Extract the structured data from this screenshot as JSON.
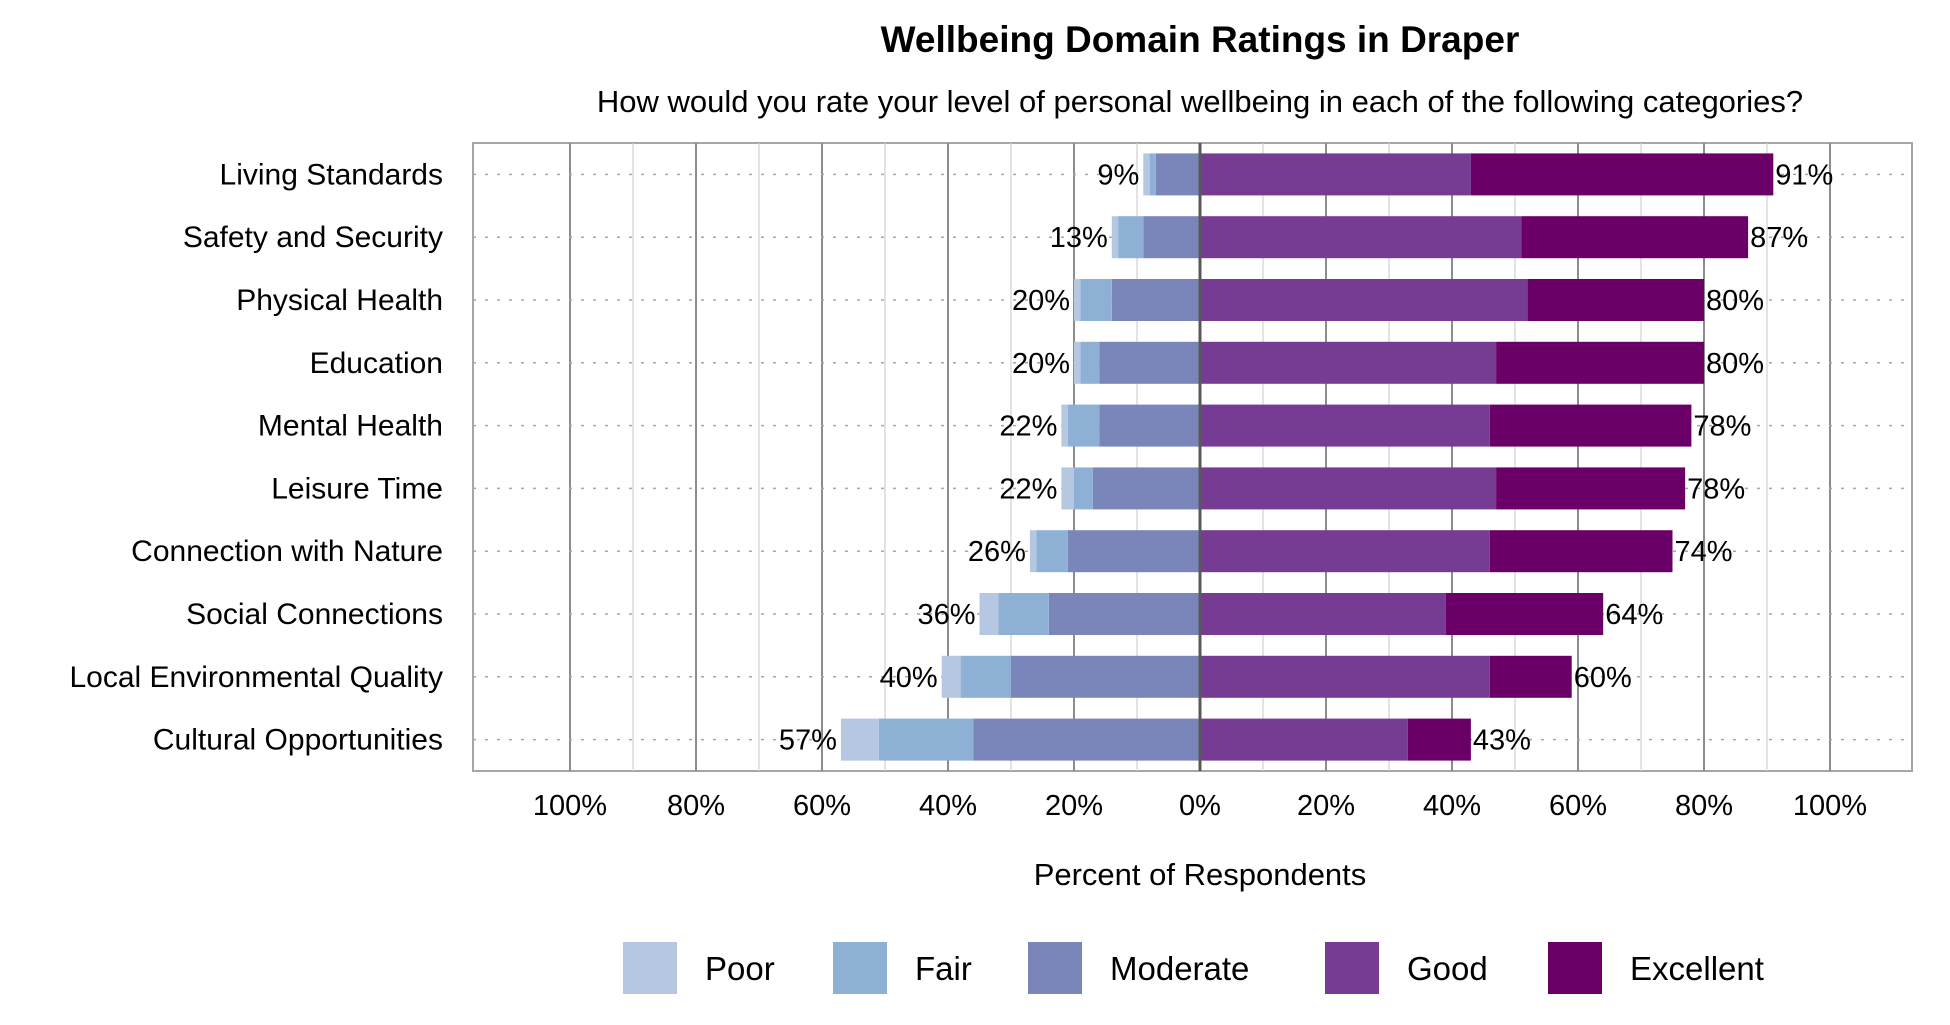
{
  "chart_data": {
    "type": "bar",
    "orientation": "horizontal",
    "stacking": "diverging",
    "title": "Wellbeing Domain Ratings in Draper",
    "subtitle": "How would you rate your level of personal wellbeing in each of the following categories?",
    "xlabel": "Percent of Respondents",
    "ylabel": "",
    "xlim": [
      -100,
      100
    ],
    "x_ticks": [
      "100%",
      "80%",
      "60%",
      "40%",
      "20%",
      "0%",
      "20%",
      "40%",
      "60%",
      "80%",
      "100%"
    ],
    "grid": true,
    "legend_position": "bottom",
    "categories": [
      "Living Standards",
      "Safety and Security",
      "Physical Health",
      "Education",
      "Mental Health",
      "Leisure Time",
      "Connection with Nature",
      "Social Connections",
      "Local Environmental Quality",
      "Cultural Opportunities"
    ],
    "series": [
      {
        "name": "Poor",
        "side": "negative",
        "color": "#b6c8e1",
        "values": [
          1,
          1,
          1,
          1,
          1,
          2,
          1,
          3,
          3,
          6
        ]
      },
      {
        "name": "Fair",
        "side": "negative",
        "color": "#8eb0d5",
        "values": [
          1,
          4,
          5,
          3,
          5,
          3,
          5,
          8,
          8,
          15
        ]
      },
      {
        "name": "Moderate",
        "side": "negative",
        "color": "#7a85ba",
        "values": [
          7,
          9,
          14,
          16,
          16,
          17,
          21,
          24,
          30,
          36
        ]
      },
      {
        "name": "Good",
        "side": "positive",
        "color": "#763c94",
        "values": [
          43,
          51,
          52,
          47,
          46,
          47,
          46,
          39,
          46,
          33
        ]
      },
      {
        "name": "Excellent",
        "side": "positive",
        "color": "#6a0067",
        "values": [
          48,
          36,
          28,
          33,
          32,
          30,
          29,
          25,
          13,
          10
        ]
      }
    ],
    "negative_totals": [
      "9%",
      "13%",
      "20%",
      "20%",
      "22%",
      "22%",
      "26%",
      "36%",
      "40%",
      "57%"
    ],
    "positive_totals": [
      "91%",
      "87%",
      "80%",
      "80%",
      "78%",
      "78%",
      "74%",
      "64%",
      "60%",
      "43%"
    ]
  }
}
